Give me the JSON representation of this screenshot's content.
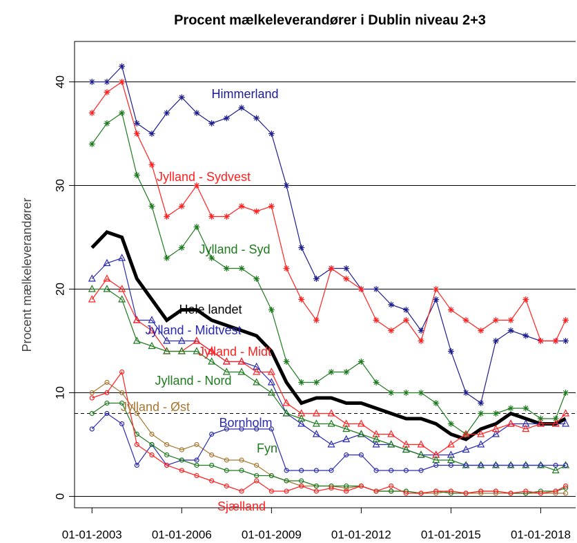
{
  "chart_data": {
    "type": "line",
    "title": "Procent mælkeleverandører i Dublin niveau 2+3",
    "y_label": "Procent mælkeleverandører",
    "x": [
      "01-01-2003",
      "01-07-2003",
      "01-01-2004",
      "01-07-2004",
      "01-01-2005",
      "01-07-2005",
      "01-01-2006",
      "01-07-2006",
      "01-01-2007",
      "01-07-2007",
      "01-01-2008",
      "01-07-2008",
      "01-01-2009",
      "01-07-2009",
      "01-01-2010",
      "01-07-2010",
      "01-01-2011",
      "01-07-2011",
      "01-01-2012",
      "01-07-2012",
      "01-01-2013",
      "01-07-2013",
      "01-01-2014",
      "01-07-2014",
      "01-01-2015",
      "01-07-2015",
      "01-01-2016",
      "01-07-2016",
      "01-01-2017",
      "01-07-2017",
      "01-01-2018",
      "01-07-2018",
      "01-11-2018"
    ],
    "xlim": [
      "01-06-2002",
      "01-03-2019"
    ],
    "xticks": [
      "01-01-2003",
      "01-01-2006",
      "01-01-2009",
      "01-01-2012",
      "01-01-2015",
      "01-01-2018"
    ],
    "ylim": [
      -1.1,
      43.9
    ],
    "yticks": [
      0,
      10,
      20,
      30,
      40
    ],
    "grid": true,
    "reference_line": 8,
    "series": [
      {
        "name": "Himmerland",
        "color": "#1c1c8c",
        "marker": "asterisk",
        "values": [
          40,
          40,
          41.5,
          36,
          35,
          37,
          38.5,
          37,
          36,
          36.5,
          37.5,
          36.5,
          35,
          30,
          24,
          21,
          22,
          22,
          20,
          20,
          18.5,
          18,
          16,
          19,
          14,
          10,
          9,
          15,
          16,
          15.5,
          15,
          15,
          15
        ]
      },
      {
        "name": "Jylland - Sydvest",
        "color": "#ff2020",
        "marker": "asterisk",
        "values": [
          37,
          39,
          40,
          35,
          32,
          27,
          28,
          30,
          27,
          27,
          28,
          27.5,
          28,
          22,
          19,
          17,
          22,
          21,
          20,
          17,
          16,
          17,
          15,
          20,
          18,
          17,
          16,
          17,
          17,
          19,
          15,
          15,
          17
        ]
      },
      {
        "name": "Jylland - Syd",
        "color": "#1e7a1e",
        "marker": "asterisk",
        "values": [
          34,
          36,
          37,
          31,
          28,
          23,
          24,
          26,
          23,
          22,
          22,
          21,
          18,
          13,
          11,
          11,
          12,
          12,
          13,
          11,
          10,
          10,
          10,
          9,
          7,
          6,
          8,
          8,
          8.5,
          8.5,
          7.5,
          7.5,
          10
        ]
      },
      {
        "name": "Hele landet",
        "color": "#000000",
        "marker": "none",
        "values": [
          24,
          25.5,
          25,
          21,
          19,
          17,
          18,
          18,
          17,
          16.5,
          16,
          15.5,
          14,
          11,
          9,
          9.5,
          9.5,
          9,
          9,
          8.5,
          8,
          7.5,
          7.5,
          7,
          6,
          5.5,
          6.5,
          7,
          8,
          7.5,
          7,
          7,
          7.5
        ]
      },
      {
        "name": "Jylland - Midtvest",
        "color": "#2a2ab0",
        "marker": "triangle",
        "values": [
          21,
          22.5,
          23,
          17,
          17,
          15,
          15,
          15,
          14,
          13,
          13,
          12.5,
          11,
          8,
          7,
          6,
          5,
          5.5,
          6,
          5,
          5,
          4.5,
          4,
          4,
          4,
          4.5,
          5,
          6,
          7,
          7,
          7,
          7,
          7
        ]
      },
      {
        "name": "Jylland - Midt",
        "color": "#ff2020",
        "marker": "triangle",
        "values": [
          19,
          21,
          20,
          17,
          16,
          14,
          14,
          15,
          14,
          13,
          13,
          12,
          12,
          9,
          8,
          8,
          8,
          7,
          7,
          6,
          6,
          5,
          5,
          4,
          5,
          6,
          6,
          6.5,
          7,
          6.5,
          7,
          7,
          8
        ]
      },
      {
        "name": "Jylland - Nord",
        "color": "#1e7a1e",
        "marker": "triangle",
        "values": [
          20,
          20,
          19,
          15,
          14.5,
          14,
          14,
          14,
          13,
          12,
          12,
          11,
          10,
          8,
          7.5,
          7,
          7,
          6.5,
          6,
          5.5,
          5,
          4.5,
          4,
          3.5,
          3.5,
          3,
          3,
          3,
          3,
          3,
          3,
          2.5,
          3
        ]
      },
      {
        "name": "Jylland - Øst",
        "color": "#a87832",
        "marker": "circle",
        "values": [
          10,
          11,
          10,
          8,
          6,
          5,
          4.5,
          5,
          4,
          3.5,
          3.5,
          3,
          2,
          1.5,
          1,
          1,
          1,
          0.8,
          1,
          0.5,
          0.5,
          0.5,
          0.3,
          0.3,
          0.5,
          0.3,
          0.3,
          0.3,
          0.3,
          0.3,
          0.3,
          0.3,
          0.3
        ]
      },
      {
        "name": "Bornholm",
        "color": "#2a2ab0",
        "marker": "circle",
        "values": [
          6.5,
          8,
          7,
          3,
          5,
          3,
          3.5,
          3.5,
          6,
          6.5,
          6.5,
          6.5,
          6.5,
          2.5,
          2.5,
          2.5,
          2.5,
          4,
          4,
          2.5,
          2.5,
          2.5,
          2.5,
          3,
          3,
          3,
          3,
          3,
          3,
          3,
          3,
          3,
          3
        ]
      },
      {
        "name": "Fyn",
        "color": "#1e7a1e",
        "marker": "circle",
        "values": [
          8,
          9,
          9,
          6,
          5,
          4,
          3.5,
          3,
          3,
          2.5,
          2.5,
          2,
          2,
          1.5,
          1.5,
          1,
          1,
          1,
          1,
          0.5,
          0.5,
          0.5,
          0.3,
          0.5,
          0.3,
          0.3,
          0.5,
          0.5,
          0.3,
          0.3,
          0.5,
          0.5,
          0.8
        ]
      },
      {
        "name": "Sjælland",
        "color": "#ff2020",
        "marker": "circle",
        "values": [
          9.5,
          10,
          12,
          5,
          4,
          3,
          2.5,
          2,
          1.5,
          1,
          0.5,
          1.5,
          0.5,
          0.5,
          1,
          0.5,
          0.8,
          0.5,
          1,
          0.5,
          1,
          0.3,
          0.3,
          0.5,
          0.5,
          0.3,
          0.5,
          0.5,
          0.3,
          0.5,
          0.3,
          0.5,
          1
        ]
      }
    ]
  }
}
